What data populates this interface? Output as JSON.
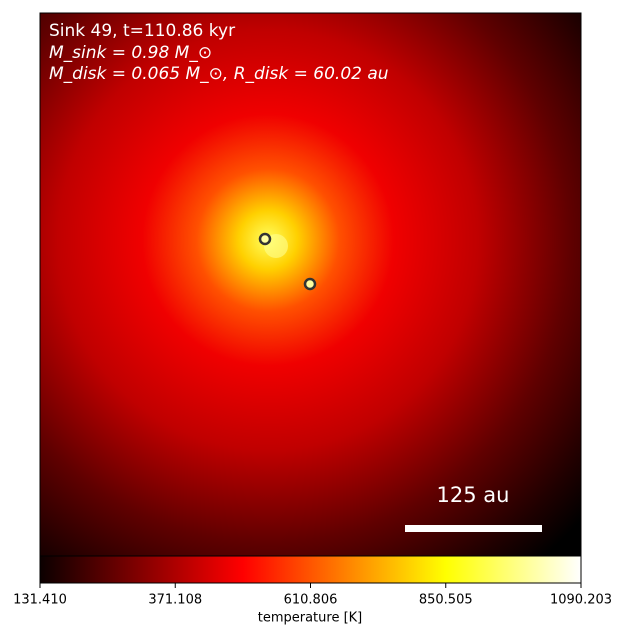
{
  "chart_data": {
    "type": "heatmap",
    "annotations": [
      "Sink 49, t=110.86 kyr",
      "M_sink = 0.98 M_⊙",
      "M_disk = 0.065 M_⊙, R_disk = 60.02 au"
    ],
    "scale_bar_label": "125 au",
    "colorbar": {
      "label": "temperature [K]",
      "lim": [
        131.41,
        1090.203
      ],
      "ticks": [
        {
          "value": 131.41,
          "label": "131.410"
        },
        371.108,
        610.806,
        850.505,
        1090.203
      ]
    }
  }
}
